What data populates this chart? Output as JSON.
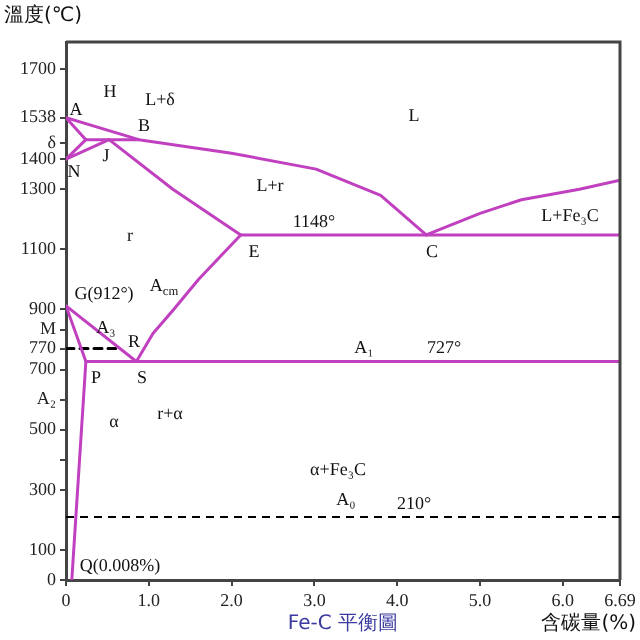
{
  "chart_data": {
    "type": "line",
    "title": "Fe-C 平衡圖",
    "xlabel": "含碳量(%)",
    "ylabel": "溫度(℃)",
    "xlim": [
      0,
      6.69
    ],
    "ylim": [
      0,
      1790
    ],
    "xticks": [
      0,
      {
        "value": 1,
        "label": "1.0"
      },
      {
        "value": 2,
        "label": "2.0"
      },
      {
        "value": 3,
        "label": "3.0"
      },
      {
        "value": 4,
        "label": "4.0"
      },
      {
        "value": 5,
        "label": "5.0"
      },
      {
        "value": 6,
        "label": "6.0"
      },
      6.69
    ],
    "yticks": [
      0,
      100,
      300,
      {
        "value": 400,
        "label": null
      },
      500,
      {
        "value": 600,
        "label": "A₂"
      },
      700,
      770,
      {
        "value": 833,
        "label": "M"
      },
      900,
      1100,
      1300,
      1400,
      {
        "value": 1453,
        "label": "δ"
      },
      1538,
      1700
    ],
    "grid": false,
    "legend": false,
    "marker": "none",
    "line_style": "solid",
    "series": [
      {
        "color": "#c040c0",
        "x": [
          0,
          0.88,
          2,
          3.02,
          3.8,
          4.35
        ],
        "values": [
          1538,
          1465,
          1420,
          1367,
          1280,
          1148
        ]
      },
      {
        "color": "#c040c0",
        "x": [
          4.35,
          5,
          5.5,
          6.2,
          6.69
        ],
        "values": [
          1148,
          1220,
          1265,
          1300,
          1330
        ]
      },
      {
        "color": "#c040c0",
        "x": [
          0.24,
          0.88
        ],
        "values": [
          1465,
          1465
        ]
      },
      {
        "color": "#c040c0",
        "x": [
          0,
          0.24
        ],
        "values": [
          1538,
          1465
        ]
      },
      {
        "color": "#c040c0",
        "x": [
          0,
          0.24
        ],
        "values": [
          1400,
          1465
        ]
      },
      {
        "color": "#c040c0",
        "x": [
          0,
          0.52
        ],
        "values": [
          1400,
          1465
        ]
      },
      {
        "color": "#c040c0",
        "x": [
          0.52,
          1.29,
          2.11
        ],
        "values": [
          1465,
          1300,
          1148
        ]
      },
      {
        "color": "#c040c0",
        "x": [
          2.11,
          6.69
        ],
        "values": [
          1148,
          1148
        ]
      },
      {
        "color": "#c040c0",
        "x": [
          0,
          0.85
        ],
        "values": [
          912,
          727
        ]
      },
      {
        "color": "#c040c0",
        "x": [
          0,
          0.24,
          0.07
        ],
        "values": [
          912,
          727,
          0
        ]
      },
      {
        "color": "#c040c0",
        "x": [
          2.11,
          1.6,
          1.3,
          1.05,
          0.85
        ],
        "values": [
          1148,
          1000,
          900,
          820,
          727
        ]
      },
      {
        "color": "#c040c0",
        "x": [
          0.24,
          6.69
        ],
        "values": [
          727,
          727
        ]
      },
      {
        "color": "#000000",
        "line_style": "dashed",
        "x": [
          0,
          0.6
        ],
        "values": [
          770,
          770
        ]
      }
    ],
    "ref_lines": [
      {
        "axis": "y",
        "value": 210,
        "color": "#000000",
        "line_style": "dashed"
      }
    ],
    "annotations": [
      "L",
      "L+δ",
      "H",
      "A",
      "B",
      "N",
      "J",
      "L+r",
      "r",
      "E",
      "1148°",
      "C",
      "L+Fe₃C",
      "A$_{cm}$",
      "G(912°)",
      "A₃",
      "R",
      "P",
      "S",
      "α",
      "r+α",
      "Q(0.008%)",
      "A₁",
      "727°",
      "α+Fe₃C",
      "A₀",
      "210°"
    ]
  }
}
